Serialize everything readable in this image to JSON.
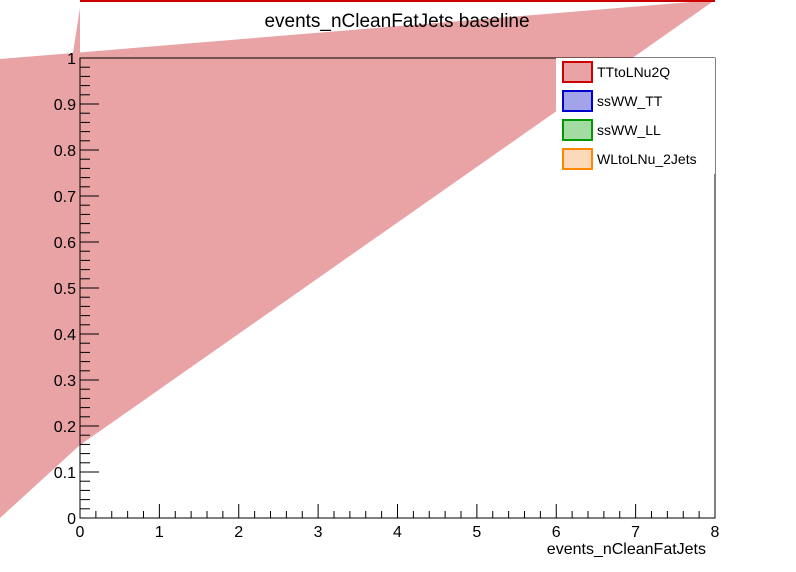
{
  "chart_data": {
    "type": "area",
    "title": "events_nCleanFatJets  baseline",
    "xlabel": "events_nCleanFatJets",
    "ylabel": "",
    "xlim": [
      0,
      8
    ],
    "ylim": [
      0,
      1
    ],
    "x_ticks": [
      "0",
      "1",
      "2",
      "3",
      "4",
      "5",
      "6",
      "7",
      "8"
    ],
    "y_ticks": [
      "0",
      "0.1",
      "0.2",
      "0.3",
      "0.4",
      "0.5",
      "0.6",
      "0.7",
      "0.8",
      "0.9",
      "1"
    ],
    "grid": false,
    "legend": {
      "placement": "top-right",
      "entries": [
        {
          "name": "TTtoLNu2Q",
          "fill": "#e9a3a5",
          "stroke": "#cc0000"
        },
        {
          "name": "ssWW_TT",
          "fill": "#a3a3e9",
          "stroke": "#0000cc"
        },
        {
          "name": "ssWW_LL",
          "fill": "#a3dca3",
          "stroke": "#009900"
        },
        {
          "name": "WLtoLNu_2Jets",
          "fill": "#fcd9b8",
          "stroke": "#ff8800"
        }
      ]
    },
    "series": [
      {
        "name": "TTtoLNu2Q",
        "color": "#e9a3a5",
        "points": []
      }
    ]
  }
}
